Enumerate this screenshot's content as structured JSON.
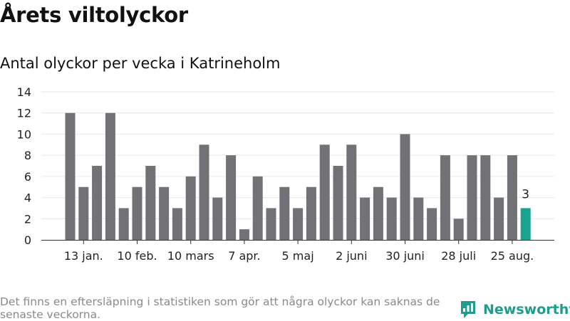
{
  "title": "Årets viltolyckor",
  "subtitle": "Antal olyckor per vecka i Katrineholm",
  "footnote": "Det finns en eftersläpning i statistiken som gör att några olyckor kan saknas de senaste veckorna.",
  "brand": {
    "name": "Newsworthy",
    "icon": "newsworthy-logo-icon",
    "color": "#1f9c8e"
  },
  "chart_data": {
    "type": "bar",
    "title": "",
    "xlabel": "",
    "ylabel": "",
    "ylim": [
      0,
      14
    ],
    "yticks": [
      0,
      2,
      4,
      6,
      8,
      10,
      12,
      14
    ],
    "grid": true,
    "legend": "none",
    "bar_color": "#727176",
    "highlight_color": "#1aa391",
    "highlight_index": 34,
    "highlight_label": "3",
    "values": [
      12,
      5,
      7,
      12,
      3,
      5,
      7,
      5,
      3,
      6,
      9,
      4,
      8,
      1,
      6,
      3,
      5,
      3,
      5,
      9,
      7,
      9,
      4,
      5,
      4,
      10,
      4,
      3,
      8,
      2,
      8,
      8,
      4,
      8,
      3
    ],
    "x_ticks": [
      {
        "index": 1,
        "label": "13 jan."
      },
      {
        "index": 5,
        "label": "10 feb."
      },
      {
        "index": 9,
        "label": "10 mars"
      },
      {
        "index": 13,
        "label": "7 apr."
      },
      {
        "index": 17,
        "label": "5 maj"
      },
      {
        "index": 21,
        "label": "2 juni"
      },
      {
        "index": 25,
        "label": "30 juni"
      },
      {
        "index": 29,
        "label": "28 juli"
      },
      {
        "index": 33,
        "label": "25 aug."
      }
    ]
  }
}
